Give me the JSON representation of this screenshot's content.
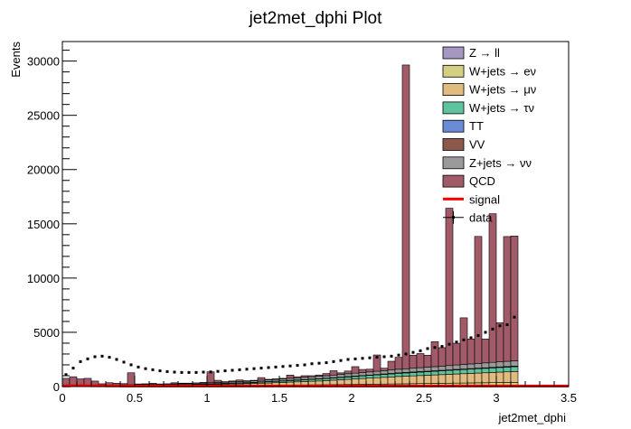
{
  "chart_data": {
    "type": "bar",
    "stacked": true,
    "title": "jet2met_dphi Plot",
    "xlabel": "jet2met_dphi",
    "ylabel": "Events",
    "xlim": [
      0,
      3.5
    ],
    "ylim": [
      0,
      31800
    ],
    "x_ticks": [
      0,
      0.5,
      1,
      1.5,
      2,
      2.5,
      3,
      3.5
    ],
    "x_tick_labels": [
      "0",
      "0.5",
      "1",
      "1.5",
      "2",
      "2.5",
      "3",
      "3.5"
    ],
    "y_ticks": [
      0,
      5000,
      10000,
      15000,
      20000,
      25000,
      30000
    ],
    "y_tick_labels": [
      "0",
      "5000",
      "10000",
      "15000",
      "20000",
      "25000",
      "30000"
    ],
    "bin_width": 0.05,
    "bin_edges_range": [
      0,
      3.15
    ],
    "legend_position": "top-right",
    "legend": [
      {
        "label": "Z → ll",
        "color": "#a498c0",
        "style": "box"
      },
      {
        "label": "W+jets → eν",
        "color": "#d4cf82",
        "style": "box"
      },
      {
        "label": "W+jets → μν",
        "color": "#e2bb80",
        "style": "box"
      },
      {
        "label": "W+jets → τν",
        "color": "#5fc49e",
        "style": "box"
      },
      {
        "label": "TT",
        "color": "#6b8bd6",
        "style": "box"
      },
      {
        "label": "VV",
        "color": "#8b5a4a",
        "style": "box"
      },
      {
        "label": "Z+jets → νν",
        "color": "#9a9a9a",
        "style": "box"
      },
      {
        "label": "QCD",
        "color": "#a05a68",
        "style": "box"
      },
      {
        "label": "signal",
        "color": "#ff0000",
        "style": "line"
      },
      {
        "label": "data",
        "color": "#000000",
        "style": "marker"
      }
    ],
    "series": [
      {
        "key": "zll",
        "values": [
          10,
          10,
          10,
          10,
          10,
          10,
          10,
          10,
          10,
          10,
          15,
          15,
          15,
          15,
          15,
          15,
          15,
          20,
          20,
          20,
          20,
          20,
          20,
          25,
          25,
          25,
          25,
          30,
          30,
          30,
          30,
          35,
          35,
          35,
          40,
          40,
          40,
          45,
          45,
          50,
          50,
          55,
          55,
          60,
          60,
          65,
          70,
          70,
          75,
          80,
          80,
          85,
          90,
          95,
          100,
          100,
          105,
          110,
          110,
          115,
          120,
          120,
          125
        ]
      },
      {
        "key": "wen",
        "values": [
          30,
          30,
          30,
          30,
          30,
          30,
          30,
          30,
          35,
          35,
          35,
          40,
          40,
          40,
          45,
          45,
          50,
          50,
          55,
          55,
          60,
          60,
          65,
          70,
          70,
          75,
          80,
          85,
          90,
          95,
          100,
          105,
          110,
          115,
          120,
          125,
          130,
          135,
          140,
          145,
          150,
          155,
          160,
          165,
          170,
          175,
          180,
          185,
          190,
          195,
          200,
          205,
          210,
          215,
          220,
          225,
          230,
          235,
          240,
          245,
          250,
          255,
          260
        ]
      },
      {
        "key": "wmn",
        "values": [
          40,
          40,
          40,
          40,
          40,
          40,
          40,
          40,
          45,
          45,
          50,
          55,
          55,
          60,
          65,
          70,
          75,
          80,
          90,
          100,
          110,
          120,
          130,
          140,
          150,
          165,
          180,
          195,
          210,
          230,
          250,
          270,
          290,
          310,
          330,
          350,
          380,
          410,
          440,
          470,
          500,
          530,
          560,
          590,
          620,
          650,
          680,
          700,
          720,
          740,
          760,
          780,
          800,
          820,
          840,
          860,
          880,
          900,
          920,
          940,
          960,
          980,
          1000
        ]
      },
      {
        "key": "wtn",
        "values": [
          20,
          20,
          20,
          20,
          20,
          20,
          20,
          20,
          20,
          20,
          25,
          25,
          25,
          30,
          30,
          35,
          35,
          40,
          45,
          50,
          55,
          60,
          65,
          70,
          75,
          80,
          90,
          100,
          110,
          120,
          130,
          140,
          150,
          160,
          170,
          180,
          190,
          200,
          210,
          220,
          230,
          240,
          250,
          260,
          270,
          280,
          290,
          300,
          310,
          320,
          330,
          340,
          350,
          360,
          370,
          380,
          390,
          400,
          410,
          420,
          430,
          440,
          450
        ]
      },
      {
        "key": "tt",
        "values": [
          5,
          5,
          5,
          5,
          5,
          5,
          5,
          5,
          5,
          5,
          5,
          5,
          5,
          5,
          5,
          5,
          5,
          5,
          5,
          5,
          5,
          5,
          5,
          5,
          5,
          5,
          5,
          10,
          10,
          10,
          10,
          10,
          10,
          10,
          10,
          10,
          10,
          10,
          10,
          10,
          10,
          10,
          10,
          10,
          15,
          15,
          15,
          15,
          15,
          15,
          15,
          15,
          15,
          15,
          15,
          15,
          15,
          15,
          15,
          15,
          15,
          15,
          15
        ]
      },
      {
        "key": "vv",
        "values": [
          10,
          10,
          10,
          10,
          10,
          10,
          10,
          10,
          10,
          10,
          10,
          10,
          10,
          10,
          10,
          10,
          10,
          10,
          10,
          10,
          10,
          10,
          10,
          15,
          15,
          15,
          15,
          15,
          15,
          15,
          15,
          20,
          20,
          20,
          20,
          20,
          20,
          20,
          20,
          25,
          25,
          25,
          25,
          25,
          25,
          25,
          30,
          30,
          30,
          30,
          30,
          30,
          30,
          30,
          35,
          35,
          35,
          35,
          35,
          35,
          35,
          35,
          35
        ]
      },
      {
        "key": "znn",
        "values": [
          40,
          40,
          40,
          40,
          40,
          40,
          40,
          40,
          45,
          45,
          50,
          55,
          55,
          60,
          65,
          70,
          75,
          80,
          85,
          90,
          95,
          100,
          105,
          110,
          115,
          120,
          130,
          140,
          150,
          160,
          170,
          180,
          190,
          200,
          210,
          220,
          230,
          240,
          250,
          260,
          270,
          280,
          290,
          300,
          310,
          320,
          330,
          340,
          350,
          360,
          370,
          380,
          390,
          400,
          410,
          420,
          430,
          440,
          450,
          460,
          470,
          480,
          490
        ]
      },
      {
        "key": "qcd",
        "values": [
          600,
          750,
          550,
          600,
          350,
          100,
          200,
          150,
          100,
          1100,
          50,
          50,
          100,
          20,
          20,
          100,
          50,
          30,
          30,
          50,
          1000,
          200,
          50,
          80,
          150,
          50,
          50,
          250,
          50,
          50,
          50,
          300,
          100,
          150,
          100,
          120,
          200,
          400,
          150,
          250,
          600,
          280,
          250,
          1500,
          220,
          800,
          1100,
          28000,
          1200,
          1300,
          1100,
          2300,
          1700,
          14500,
          2000,
          4300,
          2300,
          11700,
          2200,
          13700,
          3600,
          11500,
          11500
        ]
      },
      {
        "key": "signal",
        "values": [
          60,
          80,
          90,
          80,
          70,
          70,
          60,
          60,
          55,
          55,
          55,
          55,
          55,
          55,
          55,
          55,
          55,
          55,
          55,
          55,
          55,
          55,
          55,
          55,
          55,
          55,
          55,
          55,
          55,
          55,
          55,
          55,
          55,
          55,
          55,
          55,
          55,
          55,
          55,
          55,
          55,
          55,
          55,
          55,
          55,
          55,
          55,
          55,
          55,
          55,
          55,
          55,
          55,
          55,
          55,
          55,
          55,
          55,
          55,
          55,
          55,
          55,
          55
        ]
      },
      {
        "key": "data",
        "values": [
          1100,
          1700,
          2300,
          2550,
          2750,
          2800,
          2700,
          2500,
          2250,
          2000,
          1800,
          1650,
          1550,
          1450,
          1380,
          1330,
          1300,
          1300,
          1300,
          1330,
          1350,
          1400,
          1450,
          1500,
          1550,
          1600,
          1650,
          1700,
          1750,
          1800,
          1850,
          1900,
          1950,
          2000,
          2100,
          2150,
          2200,
          2300,
          2400,
          2500,
          2550,
          2600,
          2650,
          2700,
          2750,
          2800,
          2900,
          3000,
          3150,
          3300,
          3500,
          3600,
          3700,
          3900,
          4100,
          4300,
          4500,
          4700,
          5000,
          5300,
          5600,
          5700,
          6400
        ]
      }
    ]
  }
}
